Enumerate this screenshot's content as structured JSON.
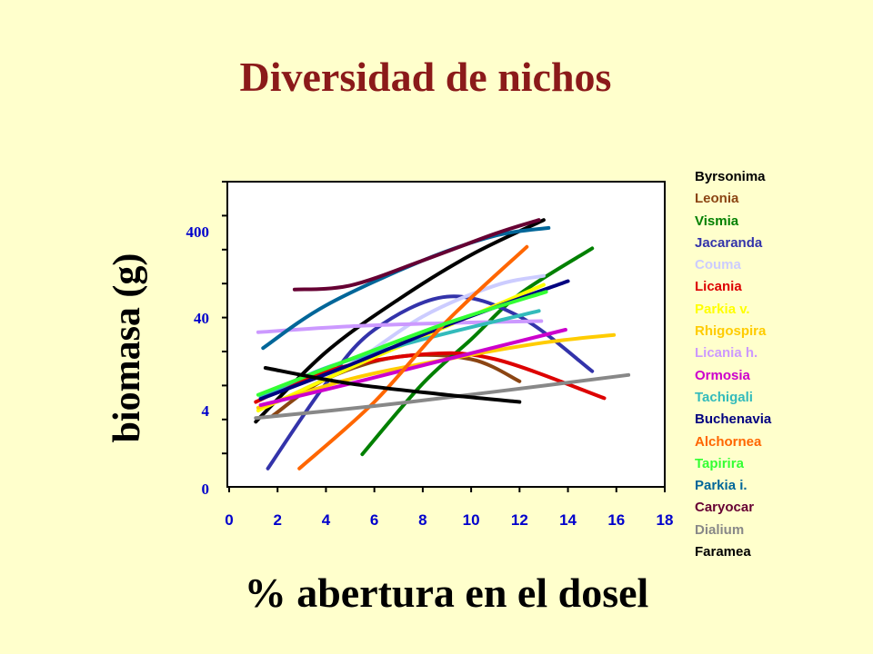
{
  "title": "Diversidad de nichos",
  "chart_data": {
    "type": "line",
    "title": "Diversidad de nichos",
    "xlabel": "% abertura en el dosel",
    "ylabel": "biomasa (g)",
    "xlim": [
      0,
      18
    ],
    "x_ticks": [
      "0",
      "2",
      "4",
      "6",
      "8",
      "10",
      "12",
      "14",
      "16",
      "18"
    ],
    "y_ticks": [
      "0",
      "4",
      "40",
      "400"
    ],
    "y_scale": "log",
    "legend_position": "right",
    "series": [
      {
        "name": "Byrsonima",
        "color": "#000000",
        "x": [
          1.1,
          4,
          7,
          10,
          13
        ],
        "y": [
          3,
          18,
          70,
          220,
          540
        ]
      },
      {
        "name": "Leonia",
        "color": "#8B4513",
        "x": [
          1.8,
          4,
          7,
          10,
          12
        ],
        "y": [
          3.5,
          9,
          16,
          15,
          8.5
        ]
      },
      {
        "name": "Vismia",
        "color": "#008000",
        "x": [
          5.5,
          8,
          10,
          12,
          15
        ],
        "y": [
          1.3,
          8,
          25,
          80,
          260
        ]
      },
      {
        "name": "Jacaranda",
        "color": "#3333AA",
        "x": [
          1.6,
          4,
          6,
          9,
          12,
          15
        ],
        "y": [
          0.9,
          8,
          32,
          75,
          45,
          11
        ]
      },
      {
        "name": "Couma",
        "color": "#CCCCFF",
        "x": [
          2,
          5,
          8,
          11,
          13
        ],
        "y": [
          5,
          13,
          45,
          100,
          128
        ]
      },
      {
        "name": "Licania",
        "color": "#DD0000",
        "x": [
          1.1,
          4,
          8,
          11,
          15.5
        ],
        "y": [
          5,
          11,
          17,
          15,
          5.5
        ]
      },
      {
        "name": "Parkia v.",
        "color": "#FFFF00",
        "x": [
          1.2,
          5,
          9,
          13
        ],
        "y": [
          4,
          12,
          35,
          102
        ]
      },
      {
        "name": "Rhigospira",
        "color": "#FFCC00",
        "x": [
          1.2,
          5,
          9,
          13,
          15.9
        ],
        "y": [
          4.3,
          9,
          15,
          23,
          28
        ]
      },
      {
        "name": "Licania h.",
        "color": "#CC99FF",
        "x": [
          1.2,
          5,
          9,
          12.9
        ],
        "y": [
          30,
          35,
          38,
          40
        ]
      },
      {
        "name": "Ormosia",
        "color": "#CC00CC",
        "x": [
          1.3,
          5,
          9,
          13.9
        ],
        "y": [
          4.6,
          8,
          15,
          32
        ]
      },
      {
        "name": "Tachigali",
        "color": "#33BBBB",
        "x": [
          1.3,
          4,
          8,
          12.8
        ],
        "y": [
          5.6,
          12,
          25,
          52
        ]
      },
      {
        "name": "Buchenavia",
        "color": "#000080",
        "x": [
          1.3,
          5,
          9,
          14
        ],
        "y": [
          5.4,
          13,
          36,
          112
        ]
      },
      {
        "name": "Alchornea",
        "color": "#FF6600",
        "x": [
          2.9,
          6,
          9,
          12.3
        ],
        "y": [
          0.9,
          5,
          40,
          270
        ]
      },
      {
        "name": "Tapirira",
        "color": "#33FF33",
        "x": [
          1.2,
          5,
          9,
          13.1
        ],
        "y": [
          6,
          15,
          38,
          85
        ]
      },
      {
        "name": "Parkia i.",
        "color": "#006699",
        "x": [
          1.4,
          4,
          8,
          11,
          13.2
        ],
        "y": [
          20,
          60,
          190,
          360,
          440
        ]
      },
      {
        "name": "Caryocar",
        "color": "#660033",
        "x": [
          2.7,
          5,
          8,
          11,
          12.8
        ],
        "y": [
          90,
          100,
          190,
          380,
          540
        ]
      },
      {
        "name": "Dialium",
        "color": "#888888",
        "x": [
          1.1,
          6,
          11,
          16.5
        ],
        "y": [
          3.3,
          4.5,
          6.5,
          10
        ]
      },
      {
        "name": "Faramea",
        "color": "#000000",
        "x": [
          1.5,
          5,
          9,
          12
        ],
        "y": [
          12,
          8,
          6,
          5
        ]
      }
    ]
  }
}
